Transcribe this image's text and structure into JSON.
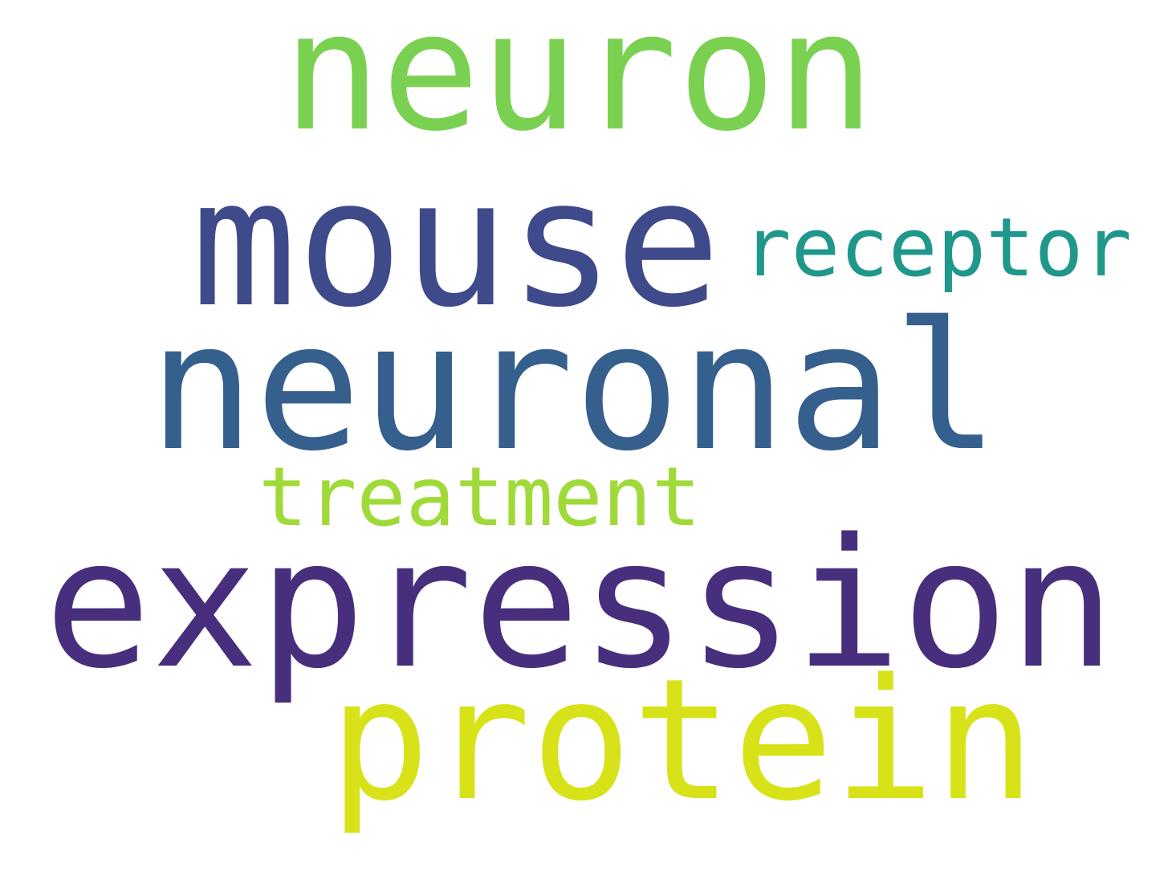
{
  "words": [
    {
      "key": "neuron",
      "text": "neuron",
      "color": "#7ad151"
    },
    {
      "key": "mouse",
      "text": "mouse",
      "color": "#3e4a89"
    },
    {
      "key": "receptor",
      "text": "receptor",
      "color": "#1f988b"
    },
    {
      "key": "neuronal",
      "text": "neuronal",
      "color": "#355f8d"
    },
    {
      "key": "treatment",
      "text": "treatment",
      "color": "#a0da39"
    },
    {
      "key": "expression",
      "text": "expression",
      "color": "#472f7d"
    },
    {
      "key": "protein",
      "text": "protein",
      "color": "#d8e219"
    }
  ]
}
